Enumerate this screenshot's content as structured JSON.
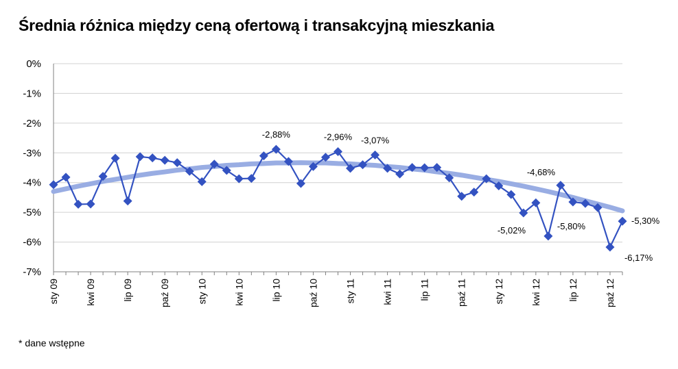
{
  "title": "Średnia różnica między ceną ofertową i transakcyjną mieszkania",
  "footnote": "* dane wstępne",
  "colors": {
    "series": "#3352c1",
    "trend": "#99ade3",
    "grid": "#d0d0d0",
    "axis": "#808080"
  },
  "chart_data": {
    "type": "line",
    "title": "Średnia różnica między ceną ofertową i transakcyjną mieszkania",
    "ylim": [
      -7,
      0
    ],
    "y_ticks": [
      0,
      -1,
      -2,
      -3,
      -4,
      -5,
      -6,
      -7
    ],
    "y_tick_labels": [
      "0%",
      "-1%",
      "-2%",
      "-3%",
      "-4%",
      "-5%",
      "-6%",
      "-7%"
    ],
    "x_tick_labels": [
      "sty 09",
      "kwi 09",
      "lip 09",
      "paź 09",
      "sty 10",
      "kwi 10",
      "lip 10",
      "paź 10",
      "sty 11",
      "kwi 11",
      "lip 11",
      "paź 11",
      "sty 12",
      "kwi 12",
      "lip 12",
      "paź 12"
    ],
    "x_tick_every": 3,
    "grid": "horizontal",
    "series": [
      {
        "style": "line-diamond",
        "values": [
          -4.07,
          -3.82,
          -4.73,
          -4.72,
          -3.79,
          -3.18,
          -4.62,
          -3.13,
          -3.17,
          -3.25,
          -3.33,
          -3.62,
          -3.97,
          -3.38,
          -3.59,
          -3.87,
          -3.86,
          -3.1,
          -2.88,
          -3.29,
          -4.03,
          -3.46,
          -3.15,
          -2.96,
          -3.52,
          -3.4,
          -3.07,
          -3.52,
          -3.71,
          -3.49,
          -3.5,
          -3.49,
          -3.84,
          -4.46,
          -4.32,
          -3.87,
          -4.11,
          -4.4,
          -5.02,
          -4.68,
          -5.8,
          -4.09,
          -4.65,
          -4.7,
          -4.84,
          -6.17,
          -5.3
        ]
      },
      {
        "style": "trend",
        "values": [
          -4.3,
          -4.21,
          -4.12,
          -4.04,
          -3.96,
          -3.89,
          -3.82,
          -3.75,
          -3.69,
          -3.64,
          -3.58,
          -3.54,
          -3.49,
          -3.46,
          -3.42,
          -3.4,
          -3.37,
          -3.36,
          -3.34,
          -3.34,
          -3.33,
          -3.34,
          -3.34,
          -3.36,
          -3.37,
          -3.4,
          -3.42,
          -3.46,
          -3.49,
          -3.54,
          -3.58,
          -3.64,
          -3.69,
          -3.75,
          -3.82,
          -3.89,
          -3.96,
          -4.04,
          -4.12,
          -4.21,
          -4.3,
          -4.4,
          -4.5,
          -4.61,
          -4.72,
          -4.83,
          -4.95
        ]
      }
    ],
    "data_labels": [
      {
        "index": 18,
        "text": "-2,88%"
      },
      {
        "index": 23,
        "text": "-2,96%"
      },
      {
        "index": 26,
        "text": "-3,07%"
      },
      {
        "index": 38,
        "text": "-5,02%"
      },
      {
        "index": 39,
        "text": "-4,68%"
      },
      {
        "index": 40,
        "text": "-5,80%"
      },
      {
        "index": 45,
        "text": "-6,17%"
      },
      {
        "index": 46,
        "text": "-5,30%"
      }
    ]
  }
}
